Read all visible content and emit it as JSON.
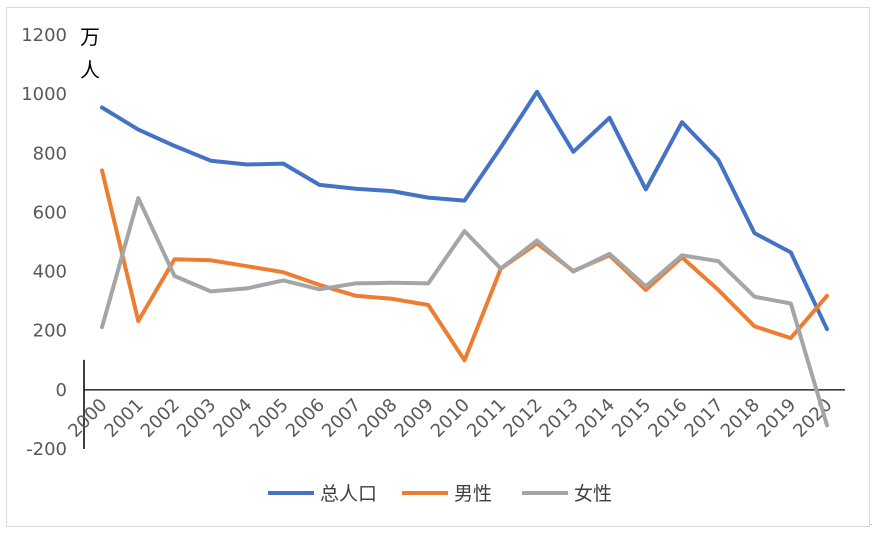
{
  "chart_data": {
    "type": "line",
    "title": "",
    "xlabel": "",
    "ylabel": "万人",
    "ylim": [
      -200,
      1200
    ],
    "yticks": [
      -200,
      0,
      200,
      400,
      600,
      800,
      1000,
      1200
    ],
    "grid": false,
    "legend_position": "bottom",
    "categories": [
      "2000",
      "2001",
      "2002",
      "2003",
      "2004",
      "2005",
      "2006",
      "2007",
      "2008",
      "2009",
      "2010",
      "2011",
      "2012",
      "2013",
      "2014",
      "2015",
      "2016",
      "2017",
      "2018",
      "2019",
      "2020"
    ],
    "series": [
      {
        "name": "总人口",
        "color": "#4472c4",
        "values": [
          955,
          880,
          825,
          775,
          762,
          765,
          693,
          680,
          672,
          650,
          640,
          820,
          1008,
          805,
          920,
          678,
          905,
          778,
          530,
          465,
          205
        ]
      },
      {
        "name": "男性",
        "color": "#ed7d31",
        "values": [
          742,
          233,
          442,
          438,
          418,
          398,
          355,
          318,
          308,
          287,
          100,
          410,
          495,
          402,
          455,
          338,
          448,
          338,
          215,
          175,
          318
        ]
      },
      {
        "name": "女性",
        "color": "#a5a5a5",
        "values": [
          212,
          648,
          385,
          333,
          343,
          370,
          340,
          360,
          362,
          360,
          537,
          410,
          505,
          400,
          460,
          350,
          455,
          435,
          315,
          292,
          -120
        ]
      }
    ]
  },
  "unit_label_line1": "万",
  "unit_label_line2": "人"
}
